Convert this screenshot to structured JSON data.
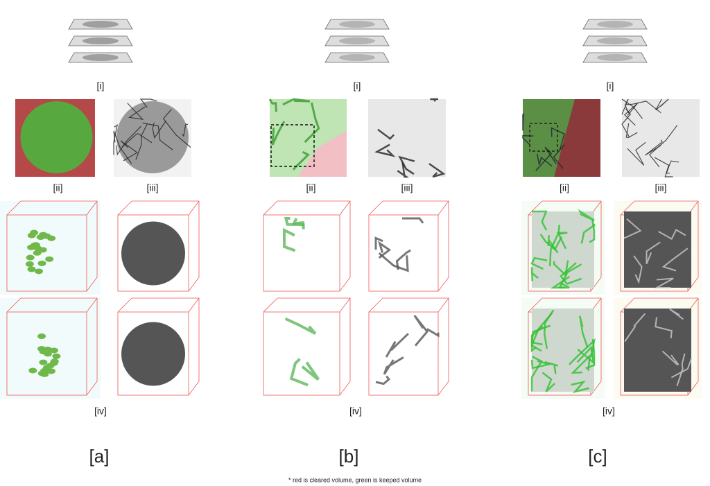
{
  "panels": [
    {
      "label": "[a]",
      "stack_label": "[i]",
      "mask_label": "[ii]",
      "result_label": "[iii]",
      "volume_label": "[iv]"
    },
    {
      "label": "[b]",
      "stack_label": "[i]",
      "mask_label": "[ii]",
      "result_label": "[iii]",
      "volume_label": "[iv]"
    },
    {
      "label": "[c]",
      "stack_label": "[i]",
      "mask_label": "[ii]",
      "result_label": "[iii]",
      "volume_label": "[iv]"
    }
  ],
  "footnote": "* red is cleared volume, green is keeped volume"
}
